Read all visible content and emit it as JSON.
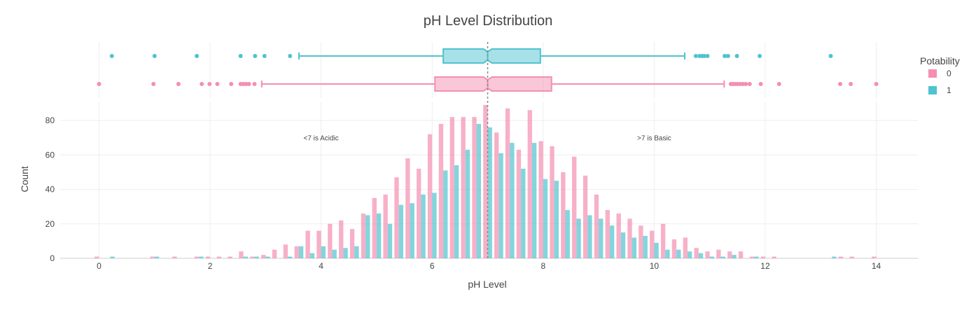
{
  "chart_data": {
    "type": "bar",
    "title": "pH Level Distribution",
    "xlabel": "pH Level",
    "ylabel": "Count",
    "xlim": [
      -0.7,
      14.75
    ],
    "ylim": [
      0,
      91
    ],
    "x_ticks": [
      0,
      2,
      4,
      6,
      8,
      10,
      12,
      14
    ],
    "y_ticks": [
      0,
      20,
      40,
      60,
      80
    ],
    "grid": true,
    "legend": {
      "title": "Potability",
      "placement": "top-right",
      "entries": [
        "0",
        "1"
      ]
    },
    "reference_line": {
      "x": 7,
      "style": "dotted"
    },
    "annotations": [
      {
        "text": "<7 is Acidic",
        "x": 4.0,
        "y": 70
      },
      {
        "text": ">7 is Basic",
        "x": 10.0,
        "y": 70
      }
    ],
    "bin_width": 0.2,
    "bin_centers": [
      0.0,
      0.2,
      0.4,
      0.6,
      0.8,
      1.0,
      1.2,
      1.4,
      1.6,
      1.8,
      2.0,
      2.2,
      2.4,
      2.6,
      2.8,
      3.0,
      3.2,
      3.4,
      3.6,
      3.8,
      4.0,
      4.2,
      4.4,
      4.6,
      4.8,
      5.0,
      5.2,
      5.4,
      5.6,
      5.8,
      6.0,
      6.2,
      6.4,
      6.6,
      6.8,
      7.0,
      7.2,
      7.4,
      7.6,
      7.8,
      8.0,
      8.2,
      8.4,
      8.6,
      8.8,
      9.0,
      9.2,
      9.4,
      9.6,
      9.8,
      10.0,
      10.2,
      10.4,
      10.6,
      10.8,
      11.0,
      11.2,
      11.4,
      11.6,
      11.8,
      12.0,
      12.2,
      12.4,
      12.6,
      12.8,
      13.0,
      13.2,
      13.4,
      13.6,
      13.8,
      14.0
    ],
    "series": [
      {
        "name": "0",
        "color": "#f48fb1",
        "values": [
          1,
          0,
          0,
          0,
          0,
          1,
          0,
          1,
          0,
          1,
          1,
          1,
          1,
          4,
          1,
          2,
          5,
          8,
          7,
          16,
          16,
          20,
          22,
          17,
          26,
          35,
          37,
          47,
          58,
          52,
          72,
          78,
          82,
          82,
          82,
          89,
          73,
          87,
          63,
          86,
          68,
          65,
          50,
          59,
          48,
          37,
          28,
          26,
          23,
          19,
          16,
          20,
          11,
          12,
          6,
          4,
          5,
          4,
          4,
          1,
          1,
          1,
          0,
          0,
          0,
          0,
          0,
          1,
          1,
          0,
          1
        ]
      },
      {
        "name": "1",
        "color": "#4fc3cf",
        "values": [
          0,
          1,
          0,
          0,
          0,
          1,
          0,
          0,
          0,
          1,
          0,
          0,
          0,
          1,
          1,
          1,
          0,
          1,
          7,
          3,
          7,
          5,
          6,
          7,
          25,
          26,
          20,
          31,
          32,
          37,
          38,
          51,
          54,
          63,
          78,
          76,
          61,
          67,
          52,
          67,
          46,
          45,
          28,
          23,
          25,
          23,
          19,
          15,
          12,
          13,
          9,
          5,
          5,
          4,
          3,
          1,
          1,
          2,
          0,
          1,
          0,
          0,
          0,
          0,
          0,
          0,
          1,
          0,
          0,
          0,
          0
        ]
      }
    ],
    "box_plots": [
      {
        "series": "1",
        "color": "#4fc3cf",
        "q1": 6.2,
        "median": 7.0,
        "q3": 7.95,
        "whisker_low": 3.6,
        "whisker_high": 10.55,
        "outliers": [
          0.23,
          1.0,
          1.76,
          2.55,
          2.81,
          2.98,
          3.44,
          10.75,
          10.82,
          10.86,
          10.9,
          10.96,
          11.27,
          11.33,
          11.49,
          11.9,
          13.18
        ]
      },
      {
        "series": "0",
        "color": "#f48fb1",
        "q1": 6.05,
        "median": 7.0,
        "q3": 8.15,
        "whisker_low": 2.93,
        "whisker_high": 11.26,
        "outliers": [
          0.0,
          0.98,
          1.43,
          1.85,
          1.99,
          2.13,
          2.38,
          2.55,
          2.6,
          2.65,
          2.7,
          2.8,
          11.38,
          11.42,
          11.46,
          11.5,
          11.55,
          11.6,
          11.65,
          11.72,
          11.92,
          12.25,
          13.35,
          13.54,
          14.0
        ]
      }
    ]
  }
}
